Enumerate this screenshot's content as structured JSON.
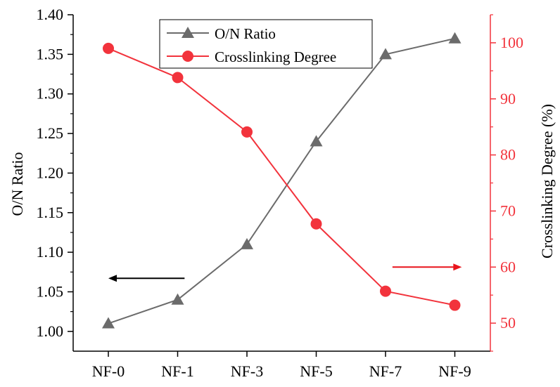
{
  "chart_data": {
    "type": "line",
    "categories": [
      "NF-0",
      "NF-1",
      "NF-3",
      "NF-5",
      "NF-7",
      "NF-9"
    ],
    "series": [
      {
        "name": "O/N Ratio",
        "axis": "left",
        "marker": "triangle",
        "color": "#6b6b6b",
        "values": [
          1.01,
          1.04,
          1.11,
          1.24,
          1.35,
          1.37
        ]
      },
      {
        "name": "Crosslinking Degree",
        "axis": "right",
        "marker": "circle",
        "color": "#f2333c",
        "values": [
          99.0,
          93.8,
          84.1,
          67.7,
          55.7,
          53.2
        ]
      }
    ],
    "ylabel_left": "O/N Ratio",
    "ylabel_right": "Crosslinking Degree (%)",
    "y_left": {
      "lim": [
        0.975,
        1.4
      ],
      "ticks": [
        "1.00",
        "1.05",
        "1.10",
        "1.15",
        "1.20",
        "1.25",
        "1.30",
        "1.35",
        "1.40"
      ],
      "color": "#000000"
    },
    "y_right": {
      "lim": [
        45,
        105
      ],
      "ticks": [
        "50",
        "60",
        "70",
        "80",
        "90",
        "100"
      ],
      "color": "#f2333c"
    },
    "legend_position": "top-center",
    "grid": false,
    "annotations": [
      {
        "type": "arrow",
        "direction": "left",
        "color": "#000000",
        "x_from": 1.1,
        "x_to": 0.0,
        "y_left": 1.067
      },
      {
        "type": "arrow",
        "direction": "right",
        "color": "#e8141c",
        "x_from": 4.1,
        "x_to": 5.1,
        "y_right": 60
      }
    ]
  }
}
